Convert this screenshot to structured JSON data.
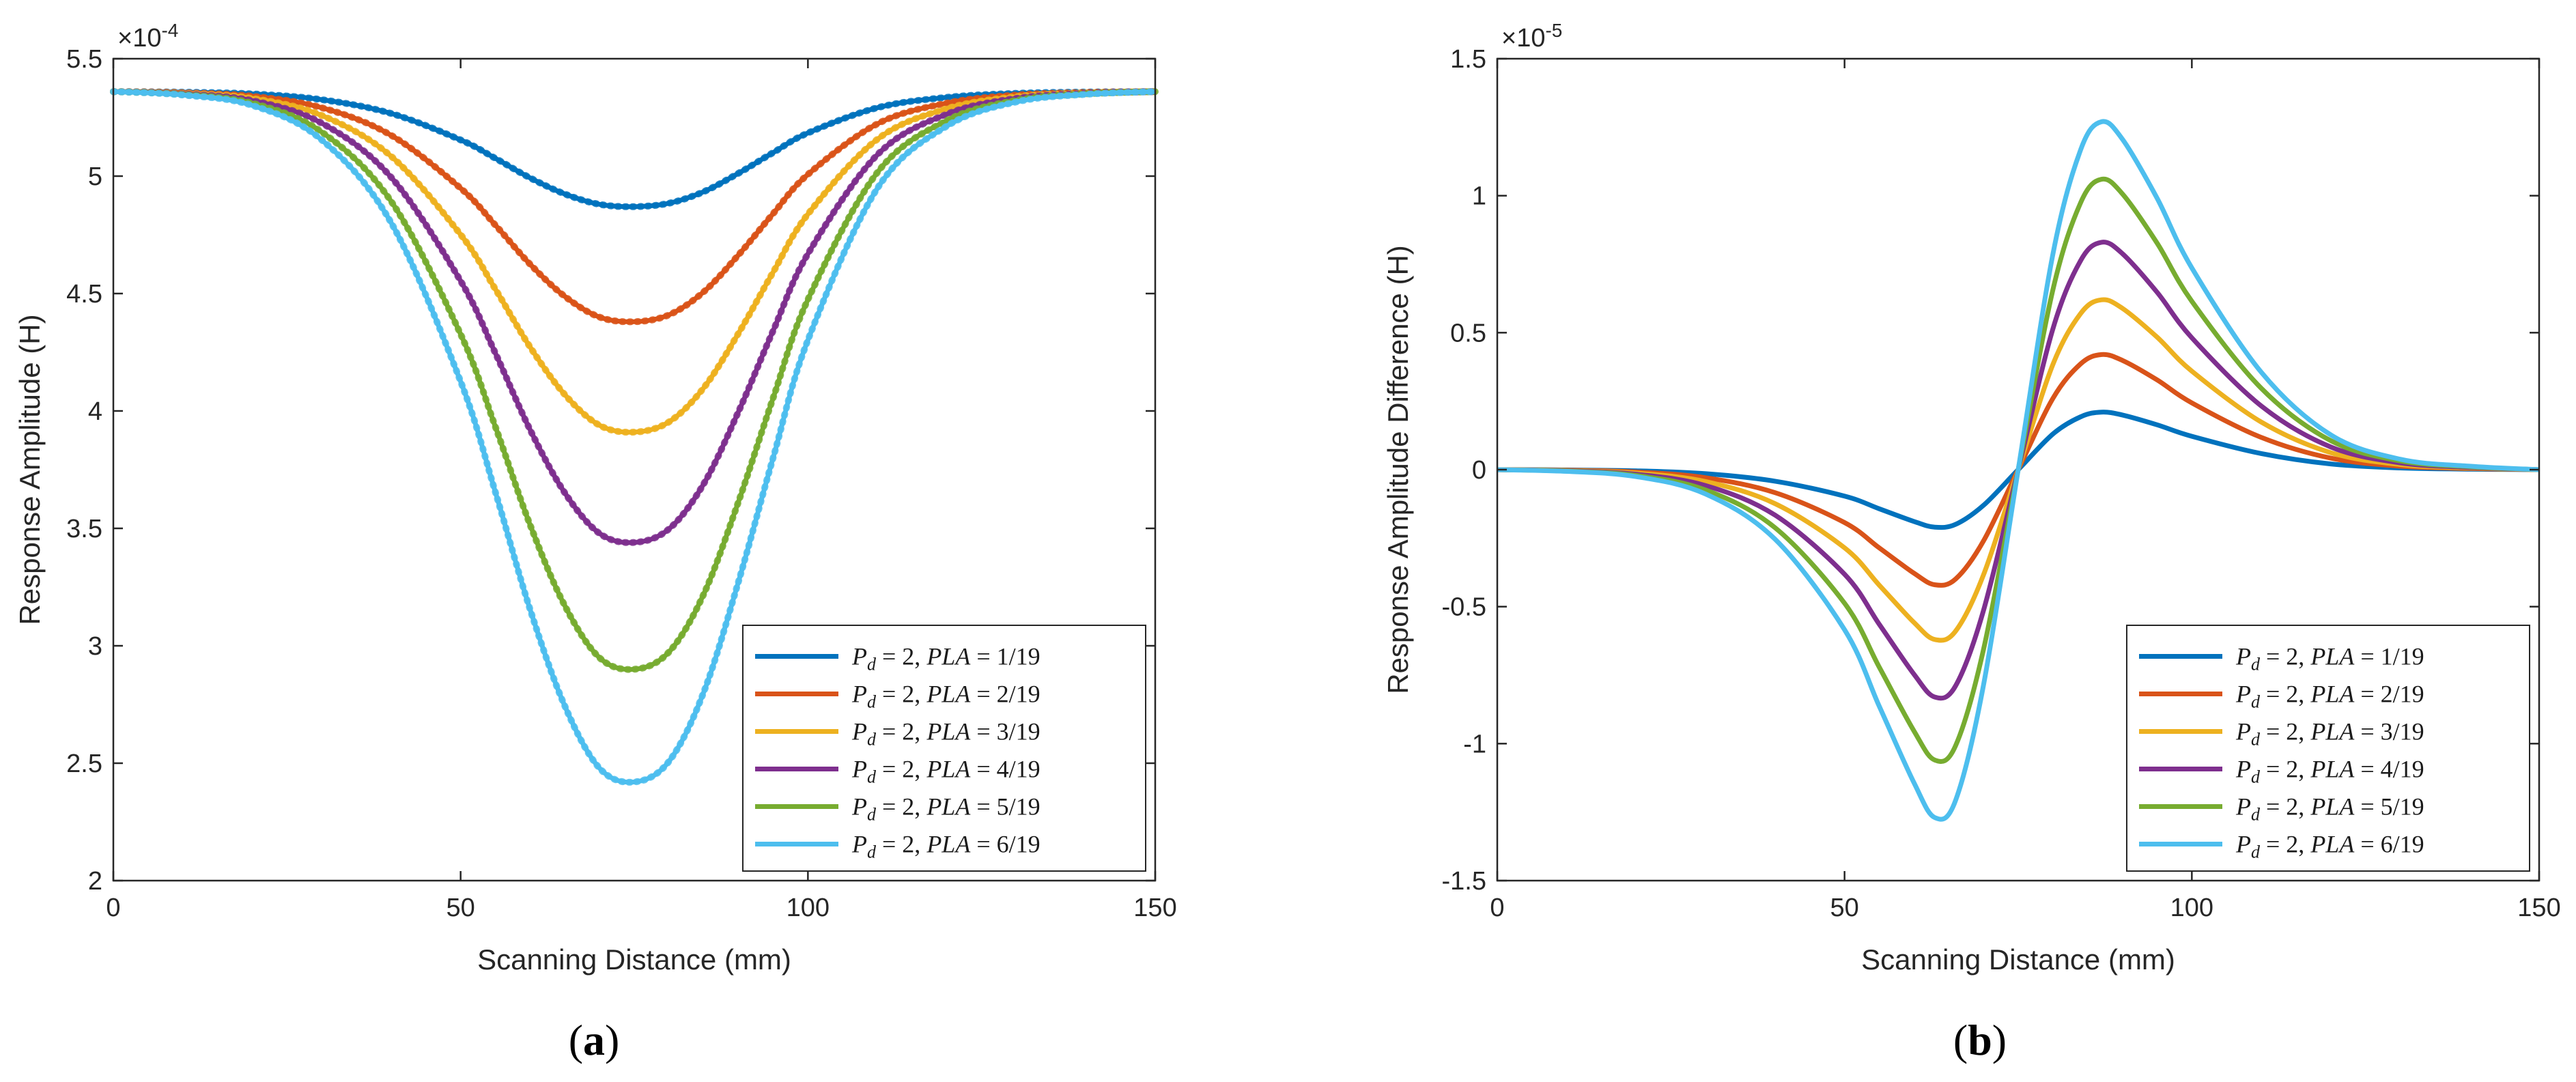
{
  "chart_data": [
    {
      "type": "line",
      "panel_label": "a",
      "xlabel": "Scanning Distance (mm)",
      "ylabel": "Response Amplitude (H)",
      "y_exponent": "×10",
      "y_exponent_power": "-4",
      "xlim": [
        0,
        150
      ],
      "ylim": [
        2,
        5.5
      ],
      "xticks": [
        0,
        50,
        100,
        150
      ],
      "xtick_labels": [
        "0",
        "50",
        "100",
        "150"
      ],
      "yticks": [
        2,
        2.5,
        3,
        3.5,
        4,
        4.5,
        5,
        5.5
      ],
      "ytick_labels": [
        "2",
        "2.5",
        "3",
        "3.5",
        "4",
        "4.5",
        "5",
        "5.5"
      ],
      "legend_position": "bottom-right",
      "series": [
        {
          "name": "P_d = 2, PLA = 1/19",
          "legend": [
            "P",
            "d",
            " = 2, ",
            "PLA",
            " = 1/19"
          ],
          "color": "#0072BD",
          "baseline": 5.36,
          "min": 4.87
        },
        {
          "name": "P_d = 2, PLA = 2/19",
          "legend": [
            "P",
            "d",
            " = 2, ",
            "PLA",
            " = 2/19"
          ],
          "color": "#D95319",
          "baseline": 5.36,
          "min": 4.38
        },
        {
          "name": "P_d = 2, PLA = 3/19",
          "legend": [
            "P",
            "d",
            " = 2, ",
            "PLA",
            " = 3/19"
          ],
          "color": "#EDB120",
          "baseline": 5.36,
          "min": 3.91
        },
        {
          "name": "P_d = 2, PLA = 4/19",
          "legend": [
            "P",
            "d",
            " = 2, ",
            "PLA",
            " = 4/19"
          ],
          "color": "#7E2F8E",
          "baseline": 5.36,
          "min": 3.44
        },
        {
          "name": "P_d = 2, PLA = 5/19",
          "legend": [
            "P",
            "d",
            " = 2, ",
            "PLA",
            " = 5/19"
          ],
          "color": "#77AC30",
          "baseline": 5.36,
          "min": 2.9
        },
        {
          "name": "P_d = 2, PLA = 6/19",
          "legend": [
            "P",
            "d",
            " = 2, ",
            "PLA",
            " = 6/19"
          ],
          "color": "#4DBEEE",
          "baseline": 5.36,
          "min": 2.42
        }
      ],
      "x": [
        0,
        10,
        20,
        30,
        40,
        50,
        55,
        60,
        65,
        70,
        75,
        80,
        85,
        90,
        95,
        100,
        110,
        120,
        130,
        140,
        150
      ],
      "shape": [
        0.0,
        0.005,
        0.02,
        0.07,
        0.19,
        0.42,
        0.58,
        0.75,
        0.89,
        0.98,
        1.0,
        0.97,
        0.87,
        0.71,
        0.53,
        0.36,
        0.14,
        0.05,
        0.015,
        0.004,
        0.0
      ]
    },
    {
      "type": "line",
      "panel_label": "b",
      "xlabel": "Scanning Distance (mm)",
      "ylabel": "Response Amplitude Difference (H)",
      "y_exponent": "×10",
      "y_exponent_power": "-5",
      "xlim": [
        0,
        150
      ],
      "ylim": [
        -1.5,
        1.5
      ],
      "xticks": [
        0,
        50,
        100,
        150
      ],
      "xtick_labels": [
        "0",
        "50",
        "100",
        "150"
      ],
      "yticks": [
        -1.5,
        -1,
        -0.5,
        0,
        0.5,
        1,
        1.5
      ],
      "ytick_labels": [
        "-1.5",
        "-1",
        "-0.5",
        "0",
        "0.5",
        "1",
        "1.5"
      ],
      "legend_position": "bottom-right",
      "series": [
        {
          "name": "P_d = 2, PLA = 1/19",
          "legend": [
            "P",
            "d",
            " = 2, ",
            "PLA",
            " = 1/19"
          ],
          "color": "#0072BD",
          "peak": 0.21,
          "trough": -0.21
        },
        {
          "name": "P_d = 2, PLA = 2/19",
          "legend": [
            "P",
            "d",
            " = 2, ",
            "PLA",
            " = 2/19"
          ],
          "color": "#D95319",
          "peak": 0.42,
          "trough": -0.42
        },
        {
          "name": "P_d = 2, PLA = 3/19",
          "legend": [
            "P",
            "d",
            " = 2, ",
            "PLA",
            " = 3/19"
          ],
          "color": "#EDB120",
          "peak": 0.62,
          "trough": -0.62
        },
        {
          "name": "P_d = 2, PLA = 4/19",
          "legend": [
            "P",
            "d",
            " = 2, ",
            "PLA",
            " = 4/19"
          ],
          "color": "#7E2F8E",
          "peak": 0.83,
          "trough": -0.83
        },
        {
          "name": "P_d = 2, PLA = 5/19",
          "legend": [
            "P",
            "d",
            " = 2, ",
            "PLA",
            " = 5/19"
          ],
          "color": "#77AC30",
          "peak": 1.06,
          "trough": -1.06
        },
        {
          "name": "P_d = 2, PLA = 6/19",
          "legend": [
            "P",
            "d",
            " = 2, ",
            "PLA",
            " = 6/19"
          ],
          "color": "#4DBEEE",
          "peak": 1.27,
          "trough": -1.27
        }
      ],
      "x": [
        0,
        10,
        20,
        30,
        40,
        50,
        55,
        60,
        63,
        66,
        70,
        75,
        80,
        84,
        87,
        90,
        95,
        100,
        110,
        120,
        130,
        140,
        150
      ],
      "shape": [
        0.0,
        -0.005,
        -0.02,
        -0.07,
        -0.2,
        -0.46,
        -0.68,
        -0.9,
        -1.0,
        -0.95,
        -0.62,
        0.0,
        0.62,
        0.92,
        1.0,
        0.95,
        0.78,
        0.58,
        0.28,
        0.1,
        0.03,
        0.01,
        0.0
      ]
    }
  ],
  "captions": {
    "a": {
      "open": "(",
      "letter": "a",
      "close": ")"
    },
    "b": {
      "open": "(",
      "letter": "b",
      "close": ")"
    }
  }
}
